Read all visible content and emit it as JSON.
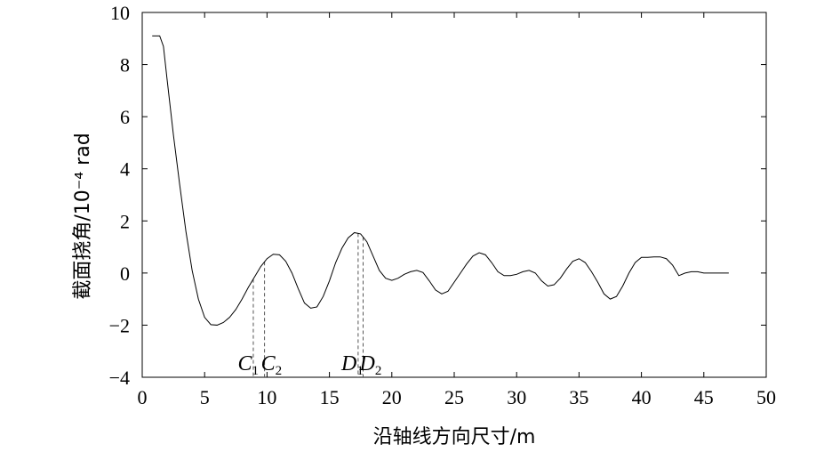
{
  "chart_data": {
    "type": "line",
    "title": "",
    "xlabel": "沿轴线方向尺寸/m",
    "ylabel": "截面挠角/10⁻⁴ rad",
    "xlim": [
      0,
      50
    ],
    "ylim": [
      -4,
      10
    ],
    "xticks": [
      0,
      5,
      10,
      15,
      20,
      25,
      30,
      35,
      40,
      45,
      50
    ],
    "yticks": [
      -4,
      -2,
      0,
      2,
      4,
      6,
      8,
      10
    ],
    "ytick_labels": [
      "−4",
      "−2",
      "0",
      "2",
      "4",
      "6",
      "8",
      "10"
    ],
    "grid": false,
    "legend": "none",
    "series": [
      {
        "x": [
          0.8,
          1.4,
          1.7,
          2.0,
          2.5,
          3.0,
          3.5,
          4.0,
          4.5,
          5.0,
          5.5,
          6.0,
          6.5,
          7.0,
          7.5,
          8.0,
          8.5,
          9.0,
          9.5,
          10.0,
          10.5,
          11.0,
          11.5,
          12.0,
          12.5,
          13.0,
          13.5,
          14.0,
          14.5,
          15.0,
          15.5,
          16.0,
          16.5,
          17.0,
          17.5,
          18.0,
          18.5,
          19.0,
          19.5,
          20.0,
          20.5,
          21.0,
          21.5,
          22.0,
          22.5,
          23.0,
          23.5,
          24.0,
          24.5,
          25.0,
          25.5,
          26.0,
          26.5,
          27.0,
          27.5,
          28.0,
          28.5,
          29.0,
          29.5,
          30.0,
          30.5,
          31.0,
          31.5,
          32.0,
          32.5,
          33.0,
          33.5,
          34.0,
          34.5,
          35.0,
          35.5,
          36.0,
          36.5,
          37.0,
          37.5,
          38.0,
          38.5,
          39.0,
          39.5,
          40.0,
          40.5,
          41.0,
          41.5,
          42.0,
          42.5,
          43.0,
          43.5,
          44.0,
          44.5,
          45.0,
          45.3,
          45.6,
          46.0,
          46.5,
          47.0
        ],
        "y": [
          9.1,
          9.1,
          8.7,
          7.4,
          5.3,
          3.4,
          1.6,
          0.1,
          -1.0,
          -1.7,
          -1.98,
          -2.0,
          -1.9,
          -1.7,
          -1.4,
          -1.0,
          -0.55,
          -0.15,
          0.25,
          0.55,
          0.72,
          0.7,
          0.45,
          0.0,
          -0.6,
          -1.15,
          -1.35,
          -1.3,
          -0.9,
          -0.3,
          0.4,
          0.95,
          1.35,
          1.55,
          1.5,
          1.2,
          0.65,
          0.1,
          -0.2,
          -0.28,
          -0.2,
          -0.05,
          0.05,
          0.1,
          0.02,
          -0.3,
          -0.65,
          -0.8,
          -0.7,
          -0.35,
          0.0,
          0.35,
          0.65,
          0.78,
          0.7,
          0.4,
          0.05,
          -0.1,
          -0.1,
          -0.05,
          0.05,
          0.1,
          0.0,
          -0.3,
          -0.5,
          -0.45,
          -0.2,
          0.15,
          0.45,
          0.55,
          0.4,
          0.05,
          -0.35,
          -0.8,
          -1.0,
          -0.9,
          -0.5,
          0.0,
          0.4,
          0.6,
          0.6,
          0.62,
          0.62,
          0.55,
          0.3,
          -0.1,
          0.0,
          0.05,
          0.05,
          0.0,
          0.0,
          0.0,
          0.0,
          0.0,
          0.0
        ]
      }
    ],
    "annotations": [
      {
        "label": "C",
        "sub": "1",
        "x": 8.9
      },
      {
        "label": "C",
        "sub": "2",
        "x": 9.8
      },
      {
        "label": "D",
        "sub": "1",
        "x": 17.3
      },
      {
        "label": "D",
        "sub": "2",
        "x": 17.7
      }
    ]
  }
}
